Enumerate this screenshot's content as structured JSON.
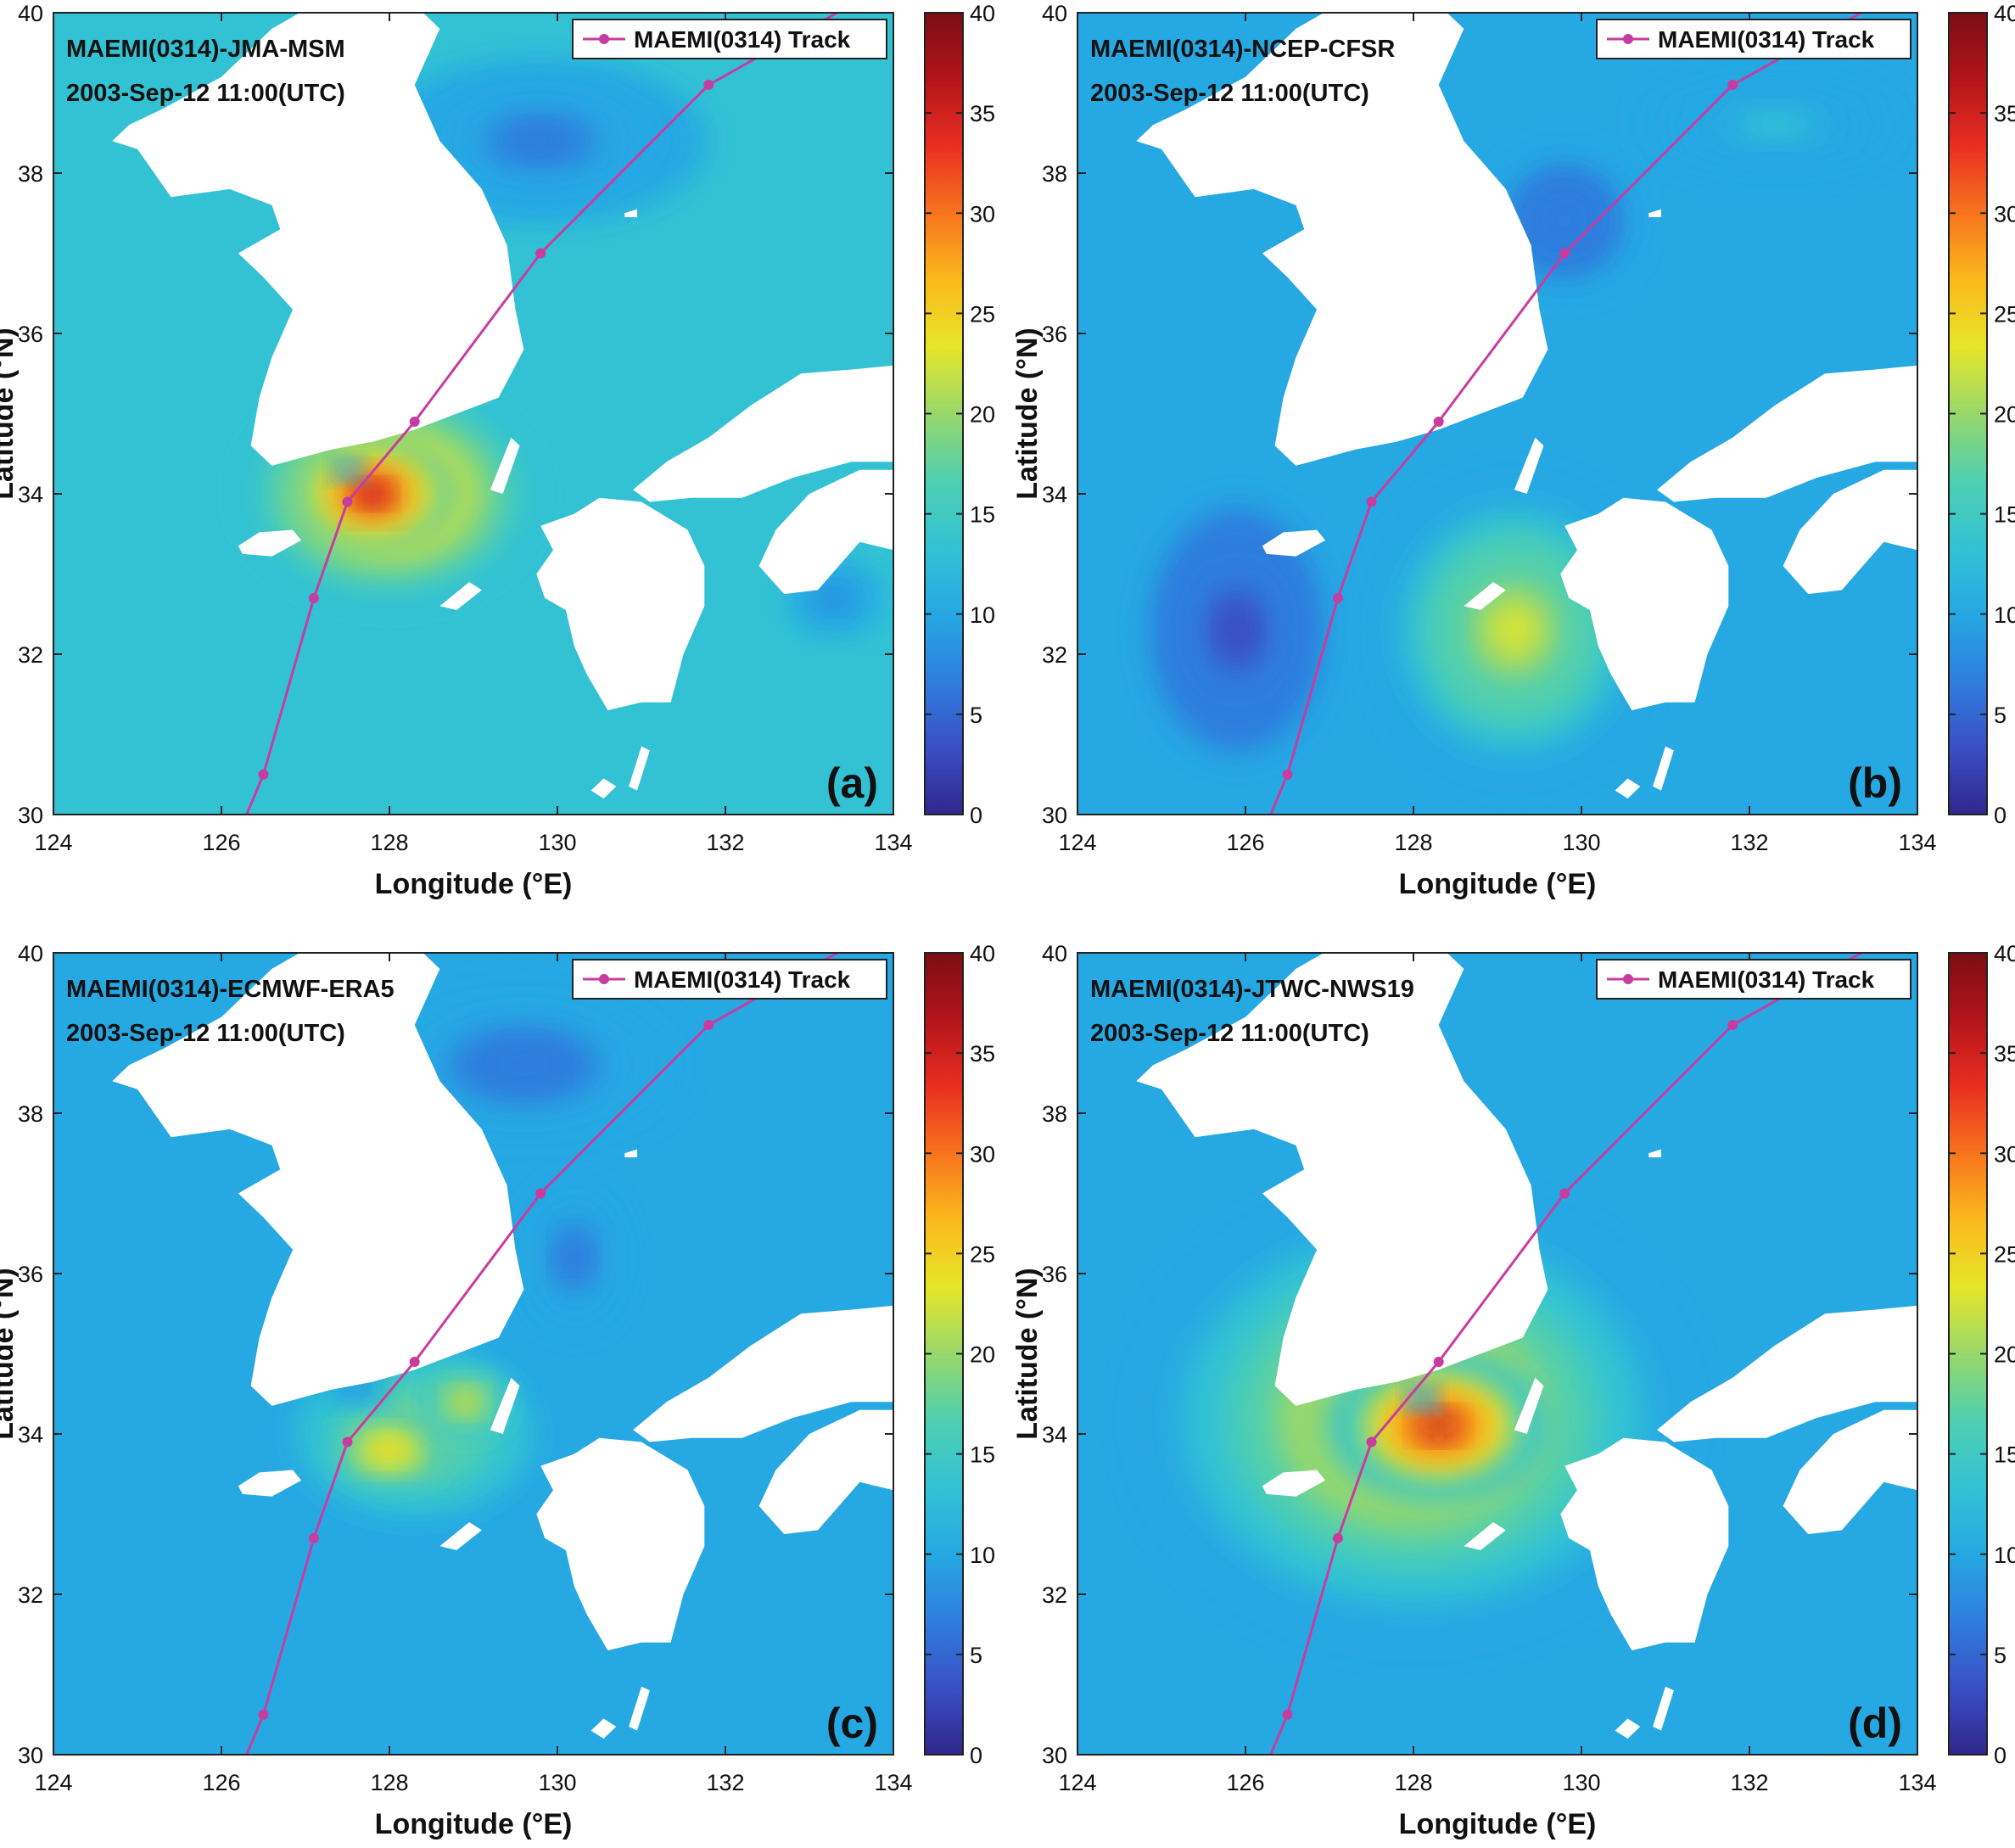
{
  "colorbar": {
    "range": [
      0,
      40
    ],
    "ticks": [
      0,
      5,
      10,
      15,
      20,
      25,
      30,
      35,
      40
    ],
    "colormap": [
      "#30278c",
      "#3a4fc4",
      "#2f7ede",
      "#26a8e3",
      "#33c2d4",
      "#4fcfb0",
      "#98d86a",
      "#e6e62a",
      "#fbb91c",
      "#f7741e",
      "#e92f22",
      "#b4141c",
      "#7a0e12"
    ]
  },
  "track": {
    "legend_label": "MAEMI(0314) Track",
    "color": "#c83ca0",
    "points": [
      [
        126.5,
        30.5
      ],
      [
        127.1,
        32.7
      ],
      [
        127.5,
        33.9
      ],
      [
        128.3,
        34.9
      ],
      [
        129.8,
        37.0
      ],
      [
        131.8,
        39.1
      ],
      [
        133.5,
        40.1
      ]
    ]
  },
  "chart_data": [
    {
      "type": "heatmap",
      "title": "MAEMI(0314)-JMA-MSM",
      "subtitle": "2003-Sep-12 11:00(UTC)",
      "panel_label": "(a)",
      "xlabel": "Longitude (°E)",
      "ylabel": "Latitude (°N)",
      "xlim": [
        124,
        134
      ],
      "ylim": [
        30,
        40
      ],
      "xticks": [
        124,
        126,
        128,
        130,
        132,
        134
      ],
      "yticks": [
        30,
        32,
        34,
        36,
        38,
        40
      ],
      "clim": [
        0,
        40
      ],
      "background_value": 12,
      "features": [
        {
          "lon": 128.0,
          "lat": 34.0,
          "value": 28,
          "rx": 1.8,
          "ry": 1.4
        },
        {
          "lon": 127.8,
          "lat": 34.0,
          "value": 36,
          "rx": 1.0,
          "ry": 0.7
        },
        {
          "lon": 127.5,
          "lat": 34.3,
          "value": 8,
          "rx": 0.15,
          "ry": 0.12
        },
        {
          "lon": 129.8,
          "lat": 38.4,
          "value": 7,
          "rx": 2.0,
          "ry": 1.0
        },
        {
          "lon": 133.3,
          "lat": 32.7,
          "value": 7,
          "rx": 0.5,
          "ry": 0.4
        }
      ],
      "legend": "MAEMI(0314) Track"
    },
    {
      "type": "heatmap",
      "title": "MAEMI(0314)-NCEP-CFSR",
      "subtitle": "2003-Sep-12 11:00(UTC)",
      "panel_label": "(b)",
      "xlabel": "Longitude (°E)",
      "ylabel": "Latitude (°N)",
      "xlim": [
        124,
        134
      ],
      "ylim": [
        30,
        40
      ],
      "xticks": [
        124,
        126,
        128,
        130,
        132,
        134
      ],
      "yticks": [
        30,
        32,
        34,
        36,
        38,
        40
      ],
      "clim": [
        0,
        40
      ],
      "background_value": 9,
      "features": [
        {
          "lon": 129.2,
          "lat": 32.3,
          "value": 22,
          "rx": 1.6,
          "ry": 1.8
        },
        {
          "lon": 125.9,
          "lat": 32.3,
          "value": 4,
          "rx": 1.0,
          "ry": 1.5
        },
        {
          "lon": 129.8,
          "lat": 37.4,
          "value": 5,
          "rx": 0.8,
          "ry": 0.8
        },
        {
          "lon": 132.3,
          "lat": 38.6,
          "value": 13,
          "rx": 1.5,
          "ry": 0.5
        }
      ],
      "legend": "MAEMI(0314) Track"
    },
    {
      "type": "heatmap",
      "title": "MAEMI(0314)-ECMWF-ERA5",
      "subtitle": "2003-Sep-12 11:00(UTC)",
      "panel_label": "(c)",
      "xlabel": "Longitude (°E)",
      "ylabel": "Latitude (°N)",
      "xlim": [
        124,
        134
      ],
      "ylim": [
        30,
        40
      ],
      "xticks": [
        124,
        126,
        128,
        130,
        132,
        134
      ],
      "yticks": [
        30,
        32,
        34,
        36,
        38,
        40
      ],
      "clim": [
        0,
        40
      ],
      "background_value": 11,
      "features": [
        {
          "lon": 128.3,
          "lat": 34.0,
          "value": 21,
          "rx": 1.4,
          "ry": 1.0
        },
        {
          "lon": 128.0,
          "lat": 33.8,
          "value": 27,
          "rx": 0.7,
          "ry": 0.4
        },
        {
          "lon": 128.9,
          "lat": 34.4,
          "value": 25,
          "rx": 0.5,
          "ry": 0.4
        },
        {
          "lon": 127.6,
          "lat": 34.6,
          "value": 7,
          "rx": 0.3,
          "ry": 0.2
        },
        {
          "lon": 129.6,
          "lat": 38.6,
          "value": 6,
          "rx": 1.8,
          "ry": 0.9
        },
        {
          "lon": 130.2,
          "lat": 36.2,
          "value": 6,
          "rx": 0.5,
          "ry": 0.8
        }
      ],
      "legend": "MAEMI(0314) Track"
    },
    {
      "type": "heatmap",
      "title": "MAEMI(0314)-JTWC-NWS19",
      "subtitle": "2003-Sep-12 11:00(UTC)",
      "panel_label": "(d)",
      "xlabel": "Longitude (°E)",
      "ylabel": "Latitude (°N)",
      "xlim": [
        124,
        134
      ],
      "ylim": [
        30,
        40
      ],
      "xticks": [
        124,
        126,
        128,
        130,
        132,
        134
      ],
      "yticks": [
        30,
        32,
        34,
        36,
        38,
        40
      ],
      "clim": [
        0,
        40
      ],
      "background_value": 9,
      "features": [
        {
          "lon": 128.0,
          "lat": 34.2,
          "value": 24,
          "rx": 3.3,
          "ry": 2.8
        },
        {
          "lon": 128.3,
          "lat": 34.1,
          "value": 35,
          "rx": 1.3,
          "ry": 0.9
        },
        {
          "lon": 128.1,
          "lat": 34.45,
          "value": 10,
          "rx": 0.16,
          "ry": 0.13
        }
      ],
      "legend": "MAEMI(0314) Track"
    }
  ]
}
